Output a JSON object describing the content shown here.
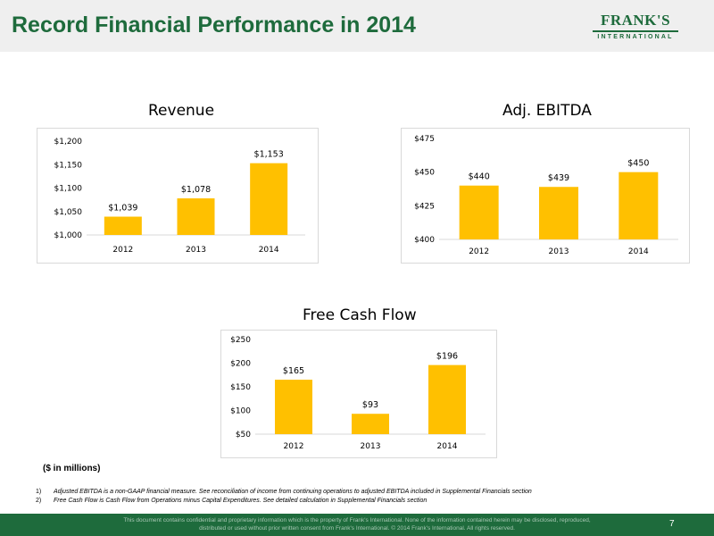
{
  "header": {
    "title": "Record Financial Performance in 2014",
    "logo_main": "FRANK'S",
    "logo_sub": "INTERNATIONAL"
  },
  "colors": {
    "brand_green": "#1e6b3c",
    "bar_gold": "#ffc000",
    "header_bg": "#efefef"
  },
  "chart_data": [
    {
      "type": "bar",
      "title": "Revenue",
      "categories": [
        "2012",
        "2013",
        "2014"
      ],
      "values": [
        1039,
        1078,
        1153
      ],
      "value_labels": [
        "$1,039",
        "$1,078",
        "$1,153"
      ],
      "ylim": [
        1000,
        1200
      ],
      "yticks": [
        1000,
        1050,
        1100,
        1150,
        1200
      ],
      "ytick_labels": [
        "$1,000",
        "$1,050",
        "$1,100",
        "$1,150",
        "$1,200"
      ],
      "grid": false,
      "color": "#ffc000"
    },
    {
      "type": "bar",
      "title": "Adj. EBITDA",
      "categories": [
        "2012",
        "2013",
        "2014"
      ],
      "values": [
        440,
        439,
        450
      ],
      "value_labels": [
        "$440",
        "$439",
        "$450"
      ],
      "ylim": [
        400,
        475
      ],
      "yticks": [
        400,
        425,
        450,
        475
      ],
      "ytick_labels": [
        "$400",
        "$425",
        "$450",
        "$475"
      ],
      "grid": false,
      "color": "#ffc000"
    },
    {
      "type": "bar",
      "title": "Free Cash Flow",
      "categories": [
        "2012",
        "2013",
        "2014"
      ],
      "values": [
        165,
        93,
        196
      ],
      "value_labels": [
        "$165",
        "$93",
        "$196"
      ],
      "ylim": [
        50,
        250
      ],
      "yticks": [
        50,
        100,
        150,
        200,
        250
      ],
      "ytick_labels": [
        "$50",
        "$100",
        "$150",
        "$200",
        "$250"
      ],
      "grid": false,
      "color": "#ffc000"
    }
  ],
  "units_note": "($ in millions)",
  "footnotes": [
    {
      "num": "1)",
      "text": "Adjusted EBITDA is a non-GAAP financial measure.  See reconciliation of income from continuing operations to adjusted EBITDA included in Supplemental Financials section"
    },
    {
      "num": "2)",
      "text": "Free Cash Flow is Cash Flow from Operations minus Capital Expenditures. See detailed calculation in Supplemental Financials section"
    }
  ],
  "footer": {
    "disclaimer": "This document contains confidential and proprietary information which is the property of Frank's International.  None of the information contained herein may be disclosed, reproduced, distributed or used without prior written consent from Frank's International. © 2014 Frank's International.   All rights reserved.",
    "page_number": "7"
  }
}
